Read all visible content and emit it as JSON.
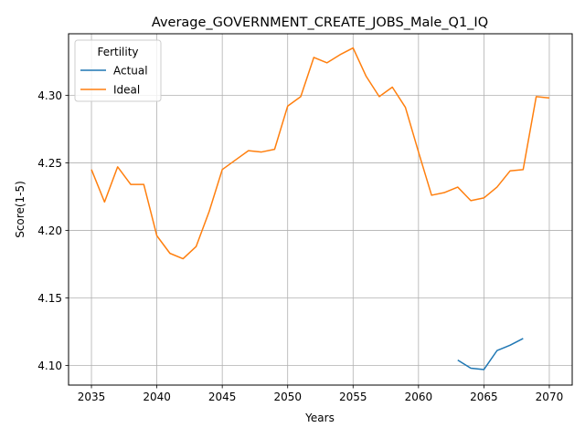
{
  "chart_data": {
    "type": "line",
    "title": "Average_GOVERNMENT_CREATE_JOBS_Male_Q1_IQ",
    "xlabel": "Years",
    "ylabel": "Score(1-5)",
    "xlim": [
      2033.25,
      2071.75
    ],
    "ylim": [
      4.0855,
      4.3455
    ],
    "xticks": [
      2035,
      2040,
      2045,
      2050,
      2055,
      2060,
      2065,
      2070
    ],
    "xtick_labels": [
      "2035",
      "2040",
      "2045",
      "2050",
      "2055",
      "2060",
      "2065",
      "2070"
    ],
    "yticks": [
      4.1,
      4.15,
      4.2,
      4.25,
      4.3
    ],
    "ytick_labels": [
      "4.10",
      "4.15",
      "4.20",
      "4.25",
      "4.30"
    ],
    "grid": true,
    "legend": {
      "title": "Fertility",
      "position": "top-left"
    },
    "series": [
      {
        "name": "Actual",
        "color": "#1f77b4",
        "x": [
          2063,
          2064,
          2065,
          2066,
          2067,
          2068
        ],
        "y": [
          4.104,
          4.098,
          4.097,
          4.111,
          4.115,
          4.12
        ]
      },
      {
        "name": "Ideal",
        "color": "#ff7f0e",
        "x": [
          2035,
          2036,
          2037,
          2038,
          2039,
          2040,
          2041,
          2042,
          2043,
          2044,
          2045,
          2046,
          2047,
          2048,
          2049,
          2050,
          2051,
          2052,
          2053,
          2054,
          2055,
          2056,
          2057,
          2058,
          2059,
          2060,
          2061,
          2062,
          2063,
          2064,
          2065,
          2066,
          2067,
          2068,
          2069,
          2070
        ],
        "y": [
          4.245,
          4.221,
          4.247,
          4.234,
          4.234,
          4.196,
          4.183,
          4.179,
          4.188,
          4.214,
          4.245,
          4.252,
          4.259,
          4.258,
          4.26,
          4.292,
          4.299,
          4.328,
          4.324,
          4.33,
          4.335,
          4.314,
          4.299,
          4.306,
          4.291,
          4.258,
          4.226,
          4.228,
          4.232,
          4.222,
          4.224,
          4.232,
          4.244,
          4.245,
          4.299,
          4.298
        ]
      }
    ]
  }
}
